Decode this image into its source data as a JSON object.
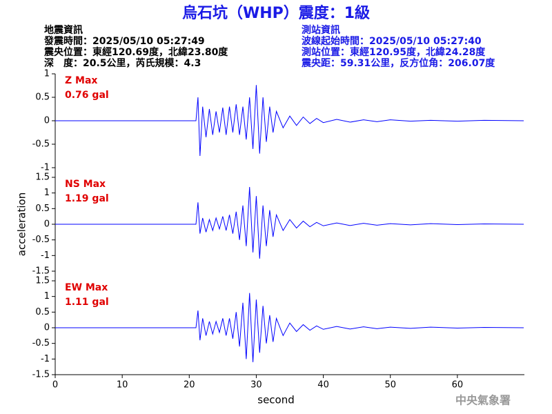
{
  "header": {
    "title": "烏石坑（WHP）震度：1級",
    "left_info": [
      "地震資訊",
      "發震時間：2025/05/10 05:27:49",
      "震央位置：東經120.69度，北緯23.80度",
      "深　度：20.5公里，芮氏規模：4.3"
    ],
    "right_info": [
      "測站資訊",
      "波線起始時間：2025/05/10 05:27:40",
      "測站位置：東經120.95度，北緯24.28度",
      "震央距：59.31公里，反方位角：206.07度"
    ],
    "watermark": "中央氣象署"
  },
  "chart_data": [
    {
      "type": "line",
      "annotation": [
        "Z Max",
        "0.76 gal"
      ],
      "color": "#0000ff",
      "annotation_color": "#e00000",
      "xlim": [
        0,
        70
      ],
      "ylim": [
        -1,
        1
      ],
      "yticks": [
        -1,
        -0.5,
        0,
        0.5,
        1
      ],
      "x": [
        0,
        21.0,
        21.3,
        21.6,
        22,
        22.5,
        23,
        23.5,
        24,
        24.5,
        25,
        25.5,
        26,
        26.5,
        27,
        27.5,
        28,
        28.5,
        29,
        29.5,
        30,
        30.5,
        31,
        31.5,
        32,
        32.5,
        33,
        34,
        35,
        36,
        37,
        38,
        39,
        40,
        42,
        44,
        46,
        48,
        50,
        53,
        56,
        60,
        64,
        69.9
      ],
      "values": [
        0,
        0,
        0.5,
        -0.75,
        0.3,
        -0.35,
        0.25,
        -0.3,
        0.2,
        -0.25,
        0.28,
        -0.3,
        0.3,
        -0.25,
        0.35,
        -0.3,
        0.3,
        -0.4,
        0.5,
        -0.6,
        0.76,
        -0.7,
        0.5,
        -0.45,
        0.3,
        -0.25,
        0.2,
        -0.15,
        0.1,
        -0.1,
        0.08,
        -0.06,
        0.05,
        -0.04,
        0.03,
        -0.03,
        0.02,
        -0.02,
        0.02,
        -0.01,
        0.01,
        -0.01,
        0.01,
        0
      ]
    },
    {
      "type": "line",
      "annotation": [
        "NS Max",
        "1.19 gal"
      ],
      "color": "#0000ff",
      "annotation_color": "#e00000",
      "ylabel": "acceleration",
      "xlim": [
        0,
        70
      ],
      "ylim": [
        -1.5,
        1.5
      ],
      "yticks": [
        -1.5,
        -1,
        -0.5,
        0,
        0.5,
        1,
        1.5
      ],
      "x": [
        0,
        21.0,
        21.3,
        21.6,
        22,
        22.5,
        23,
        23.5,
        24,
        24.5,
        25,
        25.5,
        26,
        26.5,
        27,
        27.5,
        28,
        28.5,
        29,
        29.5,
        30,
        30.5,
        31,
        31.5,
        32,
        32.5,
        33,
        34,
        35,
        36,
        37,
        38,
        39,
        40,
        42,
        44,
        46,
        48,
        50,
        53,
        56,
        60,
        64,
        69.9
      ],
      "values": [
        0,
        0,
        0.7,
        -0.3,
        0.2,
        -0.25,
        0.15,
        -0.2,
        0.2,
        -0.15,
        0.25,
        -0.2,
        0.3,
        -0.3,
        0.4,
        -0.5,
        0.6,
        -0.7,
        1.19,
        -0.9,
        0.9,
        -1.1,
        0.6,
        -0.7,
        0.45,
        -0.4,
        0.3,
        -0.2,
        0.15,
        -0.12,
        0.1,
        -0.08,
        0.06,
        -0.05,
        0.04,
        -0.04,
        0.03,
        -0.03,
        0.02,
        -0.02,
        0.02,
        -0.01,
        0.01,
        0
      ]
    },
    {
      "type": "line",
      "annotation": [
        "EW Max",
        "1.11 gal"
      ],
      "color": "#0000ff",
      "annotation_color": "#e00000",
      "xlabel": "second",
      "xlim": [
        0,
        70
      ],
      "xticks": [
        0,
        10,
        20,
        30,
        40,
        50,
        60
      ],
      "ylim": [
        -1.5,
        1.5
      ],
      "yticks": [
        -1.5,
        -1,
        -0.5,
        0,
        0.5,
        1,
        1.5
      ],
      "x": [
        0,
        21.0,
        21.3,
        21.6,
        22,
        22.5,
        23,
        23.5,
        24,
        24.5,
        25,
        25.5,
        26,
        26.5,
        27,
        27.5,
        28,
        28.5,
        29,
        29.5,
        30,
        30.5,
        31,
        31.5,
        32,
        32.5,
        33,
        34,
        35,
        36,
        37,
        38,
        39,
        40,
        42,
        44,
        46,
        48,
        50,
        53,
        56,
        60,
        64,
        69.9
      ],
      "values": [
        0,
        0,
        0.55,
        -0.4,
        0.3,
        -0.25,
        0.2,
        -0.2,
        0.2,
        -0.15,
        0.3,
        -0.25,
        0.3,
        -0.35,
        0.5,
        -0.6,
        0.8,
        -1.0,
        1.11,
        -1.1,
        0.9,
        -0.8,
        0.7,
        -0.5,
        0.4,
        -0.45,
        0.3,
        -0.25,
        0.15,
        -0.12,
        0.1,
        -0.08,
        0.06,
        -0.05,
        0.04,
        -0.04,
        0.03,
        -0.03,
        0.02,
        -0.02,
        0.02,
        -0.01,
        0.01,
        0
      ]
    }
  ]
}
